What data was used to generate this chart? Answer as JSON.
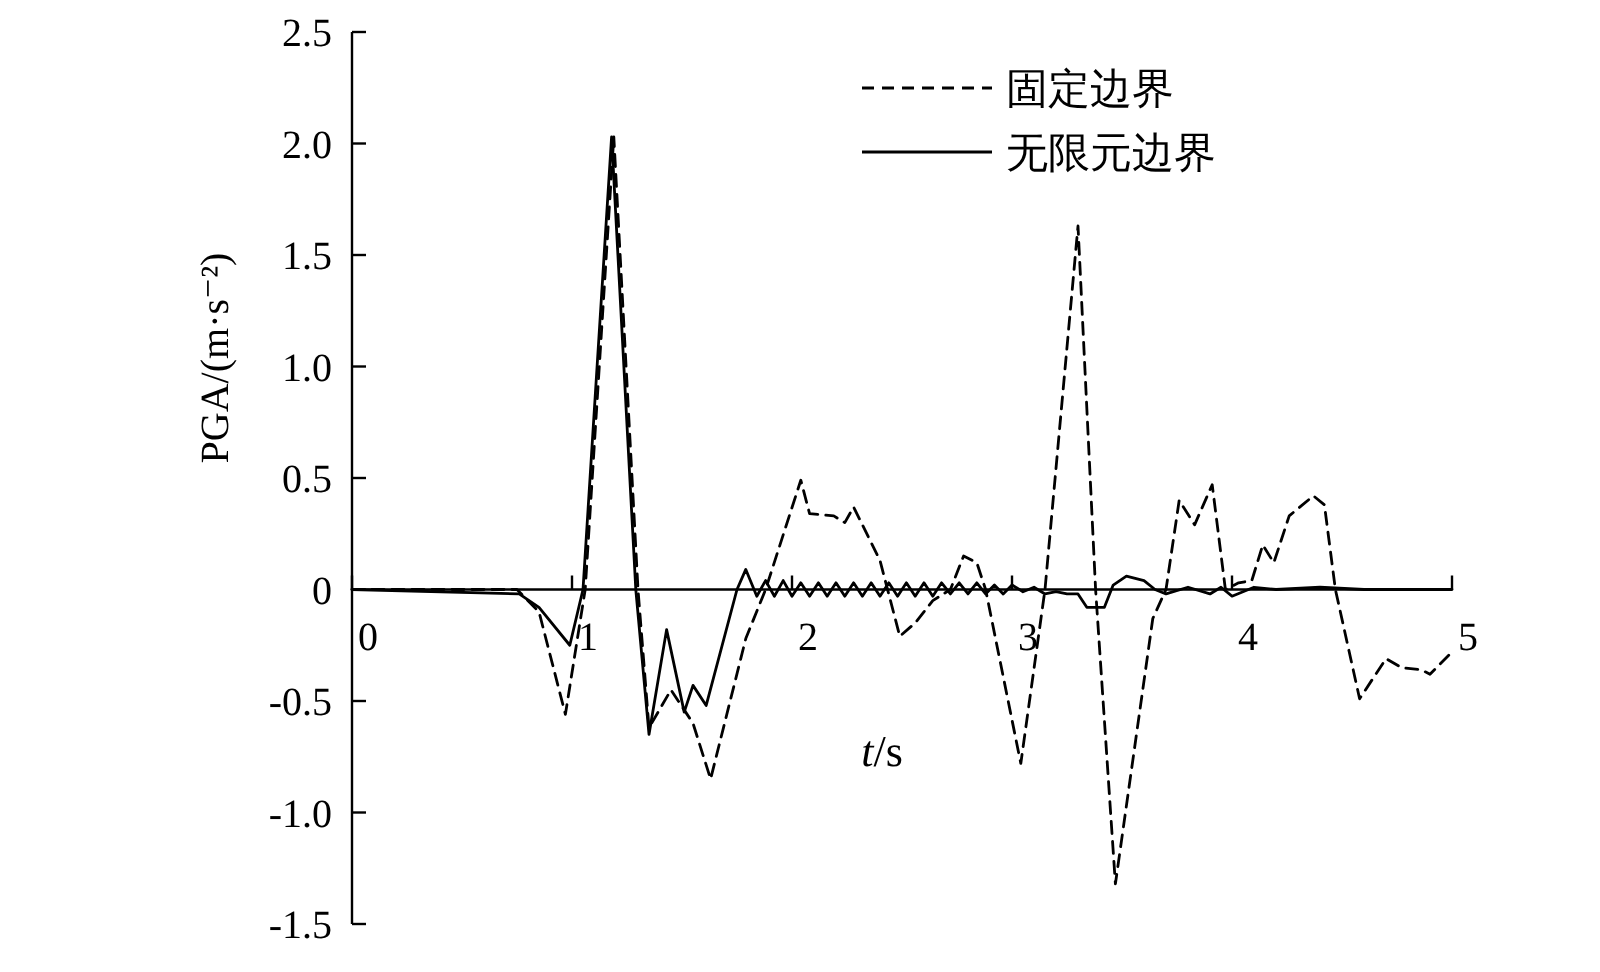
{
  "chart_data": {
    "type": "line",
    "xlabel": "t/s",
    "ylabel": "PGA/(m·s⁻²)",
    "xlim": [
      0,
      5
    ],
    "ylim": [
      -1.5,
      2.5
    ],
    "xticks": [
      0,
      1,
      2,
      3,
      4,
      5
    ],
    "yticks": [
      -1.5,
      {
        "value": -1,
        "label": "-1.0"
      },
      -0.5,
      0,
      0.5,
      {
        "value": 1,
        "label": "1.0"
      },
      1.5,
      {
        "value": 2,
        "label": "2.0"
      },
      2.5
    ],
    "legend": "top right",
    "grid": false,
    "series": [
      {
        "name": "固定边界",
        "color": "#000000",
        "line_style": "dashed",
        "x": [
          0,
          0.75,
          0.85,
          0.97,
          1.06,
          1.19,
          1.3,
          1.35,
          1.45,
          1.55,
          1.63,
          1.79,
          1.88,
          2.04,
          2.08,
          2.19,
          2.24,
          2.28,
          2.4,
          2.49,
          2.56,
          2.64,
          2.72,
          2.78,
          2.84,
          2.88,
          3.04,
          3.15,
          3.3,
          3.38,
          3.47,
          3.64,
          3.7,
          3.76,
          3.83,
          3.91,
          3.97,
          4.03,
          4.09,
          4.14,
          4.19,
          4.26,
          4.37,
          4.42,
          4.47,
          4.58,
          4.7,
          4.77,
          4.86,
          4.9,
          4.99
        ],
        "values": [
          0,
          0,
          -0.1,
          -0.56,
          0,
          2.03,
          0,
          -0.62,
          -0.45,
          -0.6,
          -0.85,
          -0.22,
          0,
          0.49,
          0.34,
          0.33,
          0.3,
          0.37,
          0.13,
          -0.21,
          -0.15,
          -0.05,
          0,
          0.15,
          0.12,
          0,
          -0.78,
          0,
          1.63,
          0,
          -1.32,
          -0.13,
          0,
          0.4,
          0.29,
          0.47,
          0,
          0.03,
          0.04,
          0.2,
          0.12,
          0.33,
          0.42,
          0.38,
          0,
          -0.49,
          -0.31,
          -0.35,
          -0.36,
          -0.38,
          -0.29
        ]
      },
      {
        "name": "无限元边界",
        "color": "#000000",
        "line_style": "solid",
        "x": [
          0,
          0.76,
          0.85,
          0.99,
          1.05,
          1.18,
          1.29,
          1.35,
          1.43,
          1.51,
          1.55,
          1.61,
          1.75,
          1.79,
          1.84,
          1.88,
          1.92,
          1.96,
          2.0,
          2.04,
          2.08,
          2.12,
          2.16,
          2.2,
          2.24,
          2.28,
          2.32,
          2.36,
          2.4,
          2.44,
          2.48,
          2.52,
          2.56,
          2.6,
          2.64,
          2.68,
          2.72,
          2.76,
          2.8,
          2.84,
          2.88,
          2.92,
          2.96,
          3.0,
          3.05,
          3.1,
          3.15,
          3.2,
          3.25,
          3.3,
          3.34,
          3.42,
          3.46,
          3.52,
          3.6,
          3.65,
          3.7,
          3.8,
          3.9,
          3.95,
          4.0,
          4.1,
          4.2,
          4.4,
          4.6,
          5.0
        ],
        "values": [
          0,
          -0.02,
          -0.08,
          -0.25,
          0,
          2.03,
          0,
          -0.65,
          -0.18,
          -0.55,
          -0.43,
          -0.52,
          0,
          0.09,
          -0.03,
          0.04,
          -0.03,
          0.04,
          -0.03,
          0.03,
          -0.03,
          0.03,
          -0.03,
          0.03,
          -0.03,
          0.03,
          -0.03,
          0.03,
          -0.03,
          0.03,
          -0.03,
          0.03,
          -0.03,
          0.03,
          -0.03,
          0.03,
          -0.02,
          0.03,
          -0.02,
          0.03,
          -0.02,
          0.02,
          -0.02,
          0.02,
          -0.01,
          0.01,
          -0.02,
          -0.01,
          -0.02,
          -0.02,
          -0.08,
          -0.08,
          0.02,
          0.06,
          0.04,
          0,
          -0.02,
          0.01,
          -0.02,
          0.01,
          -0.03,
          0.01,
          0,
          0.01,
          0,
          0
        ]
      }
    ]
  }
}
